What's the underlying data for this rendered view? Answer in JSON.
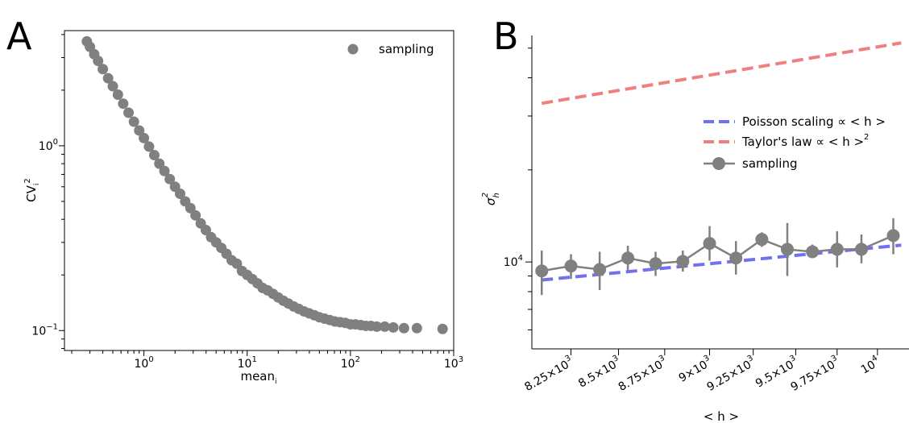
{
  "chart_data": [
    {
      "panel": "A",
      "type": "scatter",
      "xlabel": "mean",
      "xlabel_sub": "i",
      "ylabel": "CV",
      "ylabel_sub": "i",
      "ylabel_sup": "2",
      "xscale": "log",
      "yscale": "log",
      "xlim": [
        0.17,
        1000
      ],
      "ylim": [
        0.078,
        4.2
      ],
      "xticks": [
        {
          "value": 1,
          "base": "10",
          "exp": "0"
        },
        {
          "value": 10,
          "base": "10",
          "exp": "1"
        },
        {
          "value": 100,
          "base": "10",
          "exp": "2"
        },
        {
          "value": 1000,
          "base": "10",
          "exp": "3"
        }
      ],
      "yticks": [
        {
          "value": 1,
          "base": "10",
          "exp": "0"
        },
        {
          "value": 0.1,
          "base": "10",
          "exp": "−1"
        }
      ],
      "legend": {
        "position": "top-right",
        "entries": [
          "sampling"
        ]
      },
      "color": "#808080",
      "series": [
        {
          "name": "sampling",
          "points": [
            [
              0.28,
              3.67
            ],
            [
              0.3,
              3.43
            ],
            [
              0.33,
              3.13
            ],
            [
              0.36,
              2.88
            ],
            [
              0.4,
              2.6
            ],
            [
              0.45,
              2.32
            ],
            [
              0.5,
              2.1
            ],
            [
              0.56,
              1.89
            ],
            [
              0.63,
              1.69
            ],
            [
              0.71,
              1.51
            ],
            [
              0.8,
              1.35
            ],
            [
              0.9,
              1.21
            ],
            [
              1.0,
              1.1
            ],
            [
              1.12,
              0.99
            ],
            [
              1.26,
              0.89
            ],
            [
              1.41,
              0.8
            ],
            [
              1.58,
              0.73
            ],
            [
              1.78,
              0.66
            ],
            [
              2.0,
              0.6
            ],
            [
              2.24,
              0.55
            ],
            [
              2.51,
              0.5
            ],
            [
              2.82,
              0.46
            ],
            [
              3.16,
              0.42
            ],
            [
              3.55,
              0.38
            ],
            [
              3.98,
              0.35
            ],
            [
              4.47,
              0.32
            ],
            [
              5.01,
              0.3
            ],
            [
              5.62,
              0.28
            ],
            [
              6.31,
              0.26
            ],
            [
              7.08,
              0.24
            ],
            [
              7.94,
              0.23
            ],
            [
              8.91,
              0.21
            ],
            [
              10.0,
              0.2
            ],
            [
              11.2,
              0.19
            ],
            [
              12.6,
              0.18
            ],
            [
              14.1,
              0.17
            ],
            [
              15.8,
              0.165
            ],
            [
              17.8,
              0.158
            ],
            [
              20.0,
              0.151
            ],
            [
              22.4,
              0.145
            ],
            [
              25.1,
              0.14
            ],
            [
              28.2,
              0.135
            ],
            [
              31.6,
              0.131
            ],
            [
              35.5,
              0.127
            ],
            [
              39.8,
              0.124
            ],
            [
              44.7,
              0.121
            ],
            [
              50.1,
              0.118
            ],
            [
              56.2,
              0.116
            ],
            [
              63.1,
              0.114
            ],
            [
              70.8,
              0.112
            ],
            [
              79.4,
              0.111
            ],
            [
              89.1,
              0.11
            ],
            [
              100,
              0.108
            ],
            [
              112,
              0.108
            ],
            [
              126,
              0.107
            ],
            [
              141,
              0.106
            ],
            [
              158,
              0.106
            ],
            [
              180,
              0.105
            ],
            [
              215,
              0.105
            ],
            [
              260,
              0.104
            ],
            [
              330,
              0.103
            ],
            [
              440,
              0.103
            ],
            [
              780,
              0.102
            ]
          ]
        }
      ]
    },
    {
      "panel": "B",
      "type": "line",
      "xlabel": "< h >",
      "ylabel": "σ",
      "ylabel_sub": "h",
      "ylabel_sup": "2",
      "xscale": "log",
      "yscale": "log",
      "xlim": [
        8050,
        10200
      ],
      "ylim": [
        5200,
        55000
      ],
      "xticks": [
        {
          "value": 8250,
          "mant": "8.25×10",
          "exp": "3"
        },
        {
          "value": 8500,
          "mant": "8.5×10",
          "exp": "3"
        },
        {
          "value": 8750,
          "mant": "8.75×10",
          "exp": "3"
        },
        {
          "value": 9000,
          "mant": "9×10",
          "exp": "3"
        },
        {
          "value": 9250,
          "mant": "9.25×10",
          "exp": "3"
        },
        {
          "value": 9500,
          "mant": "9.5×10",
          "exp": "3"
        },
        {
          "value": 9750,
          "mant": "9.75×10",
          "exp": "3"
        },
        {
          "value": 10000,
          "mant": "10",
          "exp": "4"
        }
      ],
      "yticks": [
        {
          "value": 10000,
          "base": "10",
          "exp": "4"
        }
      ],
      "legend": {
        "position": "center-right",
        "entries": [
          {
            "label": "Poisson scaling",
            "suffix": " ∝ < h >",
            "sup": "",
            "color": "#7070f0",
            "style": "dashed"
          },
          {
            "label": "Taylor's law",
            "suffix": " ∝ < h >",
            "sup": "2",
            "color": "#f08080",
            "style": "dashed"
          },
          {
            "label": "sampling",
            "suffix": "",
            "sup": "",
            "color": "#808080",
            "style": "line-marker"
          }
        ]
      },
      "series": [
        {
          "name": "Poisson scaling",
          "color": "#7070f0",
          "points": [
            [
              8100,
              8730
            ],
            [
              10150,
              11350
            ]
          ]
        },
        {
          "name": "Taylor's law",
          "color": "#f08080",
          "points": [
            [
              8100,
              33000
            ],
            [
              10150,
              52000
            ]
          ]
        },
        {
          "name": "sampling",
          "color": "#808080",
          "points": [
            {
              "x": 8100,
              "y": 9350,
              "lo": 7800,
              "hi": 10900
            },
            {
              "x": 8250,
              "y": 9700,
              "lo": 8800,
              "hi": 10600
            },
            {
              "x": 8400,
              "y": 9450,
              "lo": 8100,
              "hi": 10800
            },
            {
              "x": 8550,
              "y": 10300,
              "lo": 9400,
              "hi": 11300
            },
            {
              "x": 8700,
              "y": 9880,
              "lo": 9000,
              "hi": 10800
            },
            {
              "x": 8850,
              "y": 10050,
              "lo": 9300,
              "hi": 10900
            },
            {
              "x": 9000,
              "y": 11500,
              "lo": 10100,
              "hi": 13100
            },
            {
              "x": 9150,
              "y": 10300,
              "lo": 9100,
              "hi": 11700
            },
            {
              "x": 9300,
              "y": 11850,
              "lo": 11200,
              "hi": 12500
            },
            {
              "x": 9450,
              "y": 11000,
              "lo": 9000,
              "hi": 13400
            },
            {
              "x": 9600,
              "y": 10800,
              "lo": 10300,
              "hi": 11400
            },
            {
              "x": 9750,
              "y": 11000,
              "lo": 9600,
              "hi": 12600
            },
            {
              "x": 9900,
              "y": 11000,
              "lo": 9900,
              "hi": 12300
            },
            {
              "x": 10100,
              "y": 12200,
              "lo": 10600,
              "hi": 13900
            }
          ]
        }
      ]
    }
  ]
}
